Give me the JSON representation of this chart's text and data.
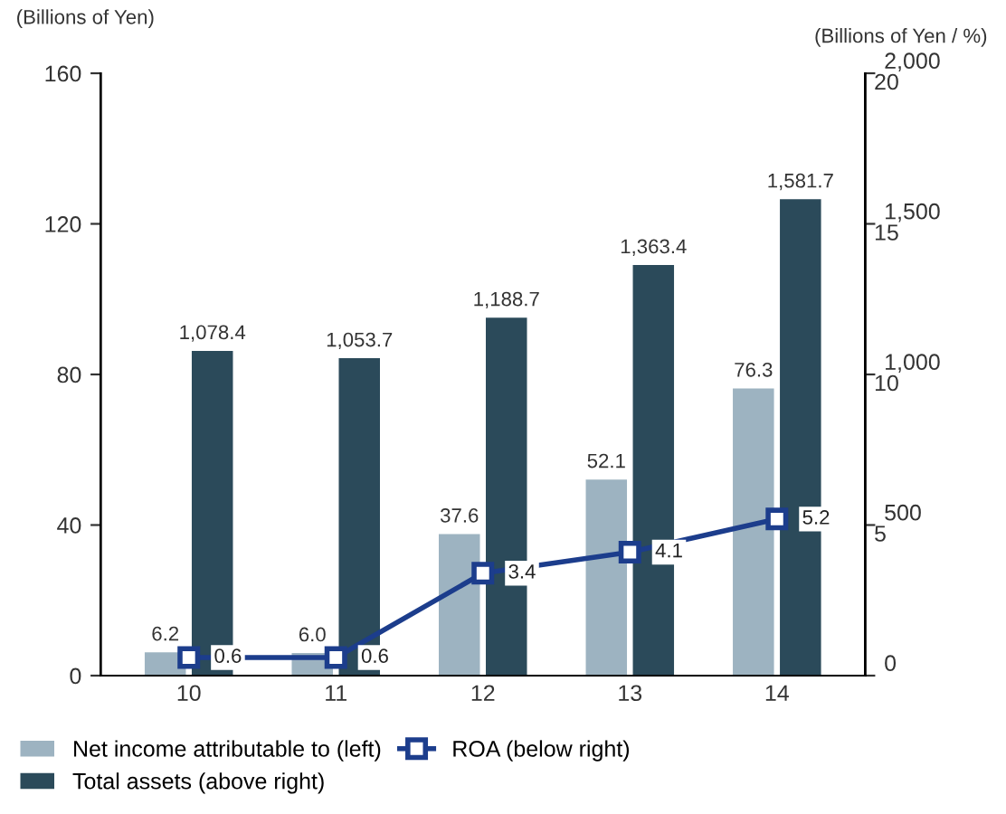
{
  "chart_data": {
    "type": "bar",
    "categories": [
      "10",
      "11",
      "12",
      "13",
      "14"
    ],
    "ylabel": "(Billions of Yen)",
    "y2label": "(Billions of Yen / %)",
    "ylim": [
      0,
      160
    ],
    "yticks": [
      0,
      40,
      80,
      120,
      160
    ],
    "y2lim": [
      0,
      2000
    ],
    "y2ticks": [
      0,
      {
        "value": 500,
        "label": "500"
      },
      {
        "value": 1000,
        "label": "1,000"
      },
      {
        "value": 1500,
        "label": "1,500"
      },
      {
        "value": 2000,
        "label": "2,000"
      }
    ],
    "y3lim": [
      0,
      20
    ],
    "y3ticks": [
      5,
      10,
      15,
      20
    ],
    "series": [
      {
        "name": "Net income attributable to (left)",
        "color": "#9db3c1",
        "values": [
          6.2,
          6.0,
          37.6,
          52.1,
          76.3
        ],
        "value_labels": [
          "6.2",
          "6.0",
          "37.6",
          "52.1",
          "76.3"
        ]
      },
      {
        "name": "Total assets (above right)",
        "color": "#2b4a5a",
        "axis": "y2",
        "values": [
          1078.4,
          1053.7,
          1188.7,
          1363.4,
          1581.7
        ],
        "value_labels": [
          "1,078.4",
          "1,053.7",
          "1,188.7",
          "1,363.4",
          "1,581.7"
        ]
      },
      {
        "name": "ROA (below right)",
        "type": "line",
        "color": "#1c3d8c",
        "axis": "y3",
        "marker": "square",
        "line_style": "solid",
        "values": [
          0.6,
          0.6,
          3.4,
          4.1,
          5.2
        ],
        "value_labels": [
          "0.6",
          "0.6",
          "3.4",
          "4.1",
          "5.2"
        ]
      }
    ],
    "legend": "bottom",
    "grid": false
  }
}
